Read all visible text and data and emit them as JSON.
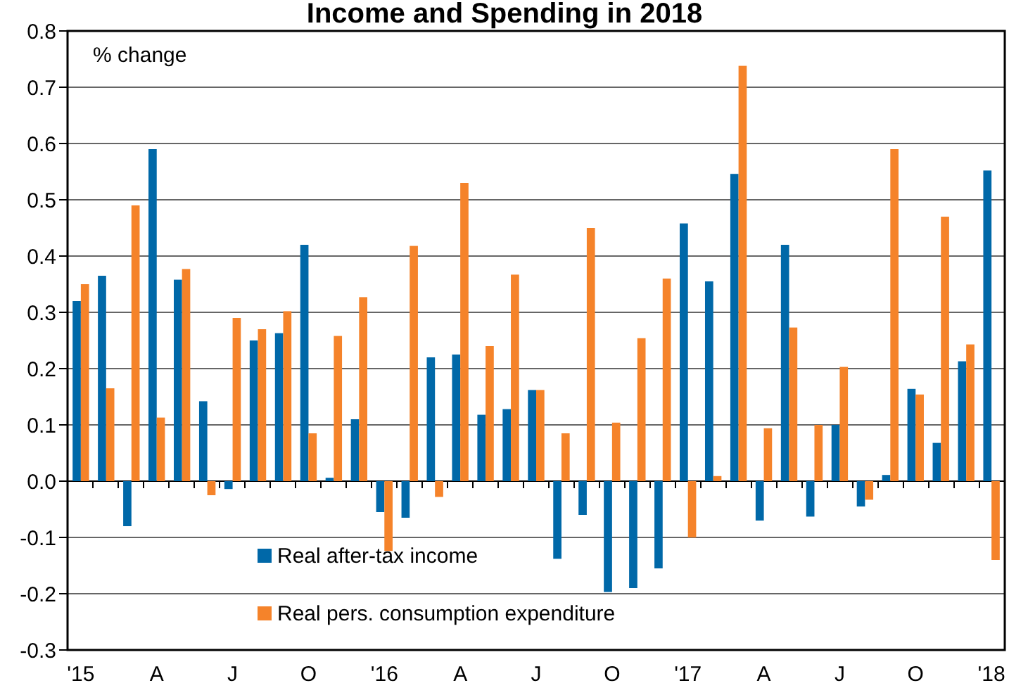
{
  "chart_data": {
    "type": "bar",
    "title": "Income and Spending in 2018",
    "ylabel": "% change",
    "categories": [
      "'15",
      null,
      null,
      "A",
      null,
      null,
      "J",
      null,
      null,
      "O",
      null,
      null,
      "'16",
      null,
      null,
      "A",
      null,
      null,
      "J",
      null,
      null,
      "O",
      null,
      null,
      "'17",
      null,
      null,
      "A",
      null,
      null,
      "J",
      null,
      null,
      "O",
      null,
      null,
      "'18"
    ],
    "series": [
      {
        "name": "Real after-tax income",
        "color": "#0068a8",
        "values": [
          0.32,
          0.365,
          -0.08,
          0.59,
          0.358,
          0.142,
          -0.014,
          0.25,
          0.263,
          0.42,
          0.006,
          0.11,
          -0.055,
          -0.065,
          0.22,
          0.225,
          0.118,
          0.128,
          0.162,
          -0.138,
          -0.06,
          -0.197,
          -0.19,
          -0.155,
          0.458,
          0.355,
          0.546,
          -0.07,
          0.42,
          -0.063,
          0.1,
          -0.045,
          0.011,
          0.164,
          0.068,
          0.213,
          0.552
        ]
      },
      {
        "name": "Real pers. consumption expenditure",
        "color": "#f5832a",
        "values": [
          0.35,
          0.165,
          0.49,
          0.113,
          0.377,
          -0.025,
          0.29,
          0.27,
          0.302,
          0.085,
          0.258,
          0.327,
          -0.124,
          0.418,
          -0.028,
          0.53,
          0.24,
          0.367,
          0.162,
          0.085,
          0.45,
          0.104,
          0.254,
          0.36,
          -0.1,
          0.009,
          0.738,
          0.094,
          0.273,
          0.1,
          0.203,
          -0.033,
          0.59,
          0.154,
          0.47,
          0.243,
          -0.14
        ]
      }
    ],
    "ylim": [
      -0.3,
      0.8
    ],
    "yticks": [
      -0.3,
      -0.2,
      -0.1,
      {
        "value": 0,
        "label": "0.0"
      },
      0.1,
      0.2,
      0.3,
      0.4,
      0.5,
      0.6,
      0.7,
      0.8
    ],
    "grid": "y",
    "legend": "bottom"
  }
}
